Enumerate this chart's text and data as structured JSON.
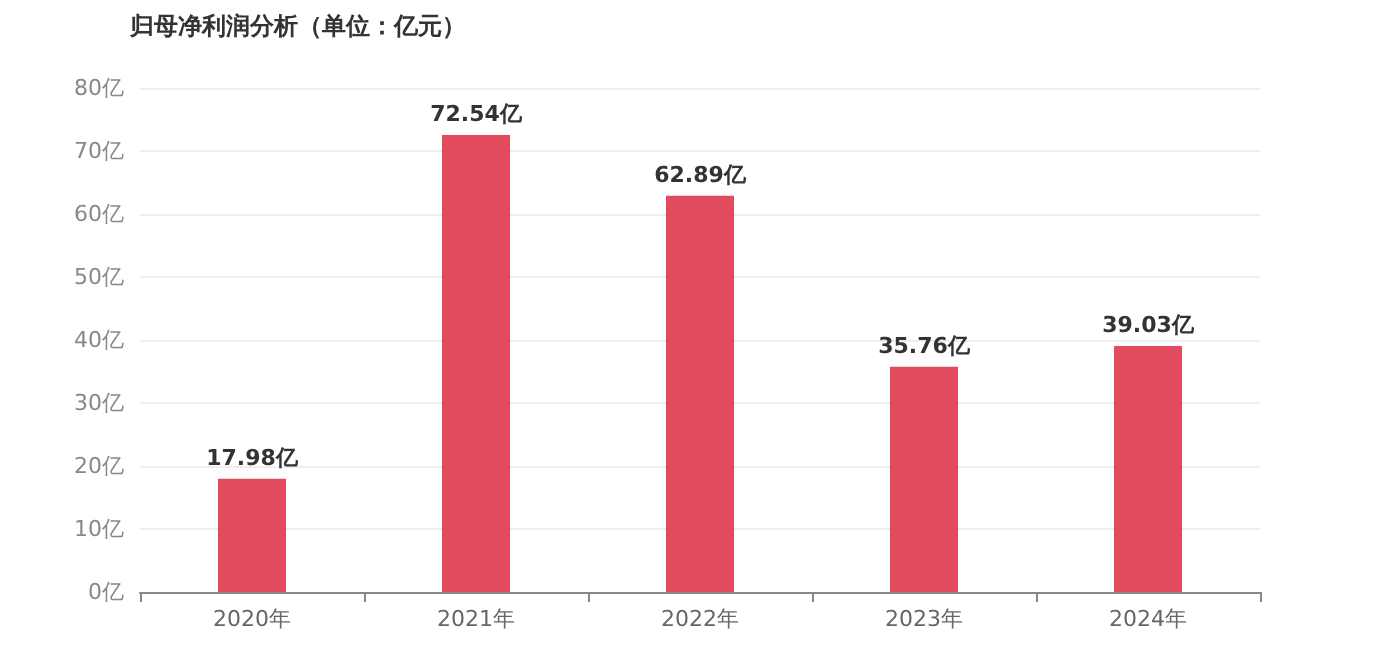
{
  "chart_data": {
    "type": "bar",
    "title": "归母净利润分析（单位：亿元）",
    "categories": [
      "2020年",
      "2021年",
      "2022年",
      "2023年",
      "2024年"
    ],
    "values": [
      17.98,
      72.54,
      62.89,
      35.76,
      39.03
    ],
    "value_labels": [
      "17.98亿",
      "72.54亿",
      "62.89亿",
      "35.76亿",
      "39.03亿"
    ],
    "color": "#e24a5e",
    "ylim": [
      0,
      80
    ],
    "yticks": [
      {
        "value": 0,
        "label": "0亿"
      },
      {
        "value": 10,
        "label": "10亿"
      },
      {
        "value": 20,
        "label": "20亿"
      },
      {
        "value": 30,
        "label": "30亿"
      },
      {
        "value": 40,
        "label": "40亿"
      },
      {
        "value": 50,
        "label": "50亿"
      },
      {
        "value": 60,
        "label": "60亿"
      },
      {
        "value": 70,
        "label": "70亿"
      },
      {
        "value": 80,
        "label": "80亿"
      }
    ],
    "grid": "y"
  }
}
